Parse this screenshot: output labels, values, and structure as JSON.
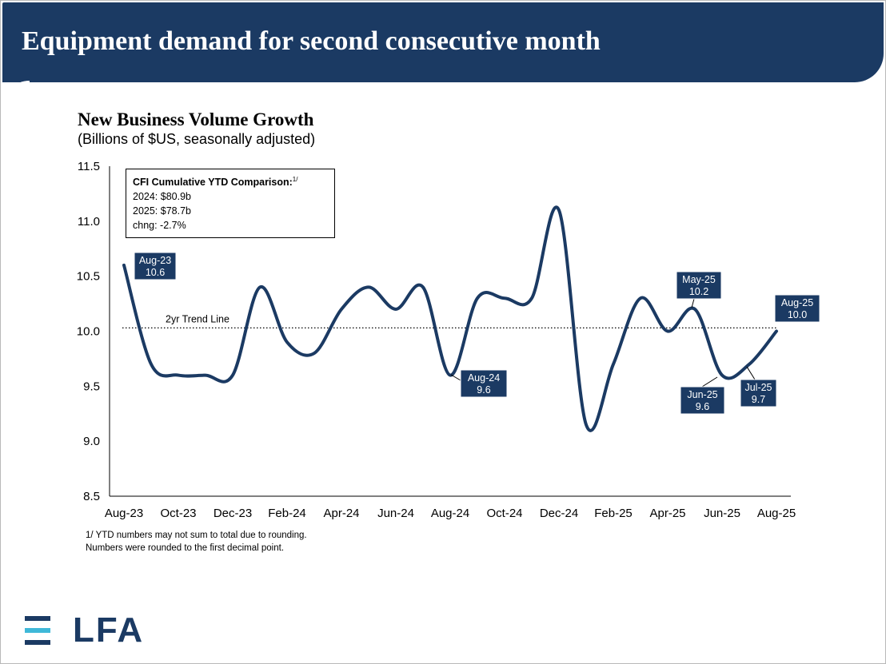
{
  "header": {
    "title": "Equipment demand for second consecutive month"
  },
  "chart_data": {
    "type": "line",
    "title": "New Business Volume Growth",
    "subtitle": "(Billions of $US, seasonally adjusted)",
    "y_range": [
      8.5,
      11.5
    ],
    "y_ticks": [
      "8.5",
      "9.0",
      "9.5",
      "10.0",
      "10.5",
      "11.0",
      "11.5"
    ],
    "x_ticks": [
      "Aug-23",
      "Oct-23",
      "Dec-23",
      "Feb-24",
      "Apr-24",
      "Jun-24",
      "Aug-24",
      "Oct-24",
      "Dec-24",
      "Feb-25",
      "Apr-25",
      "Jun-25",
      "Aug-25"
    ],
    "x": [
      "Aug-23",
      "Sep-23",
      "Oct-23",
      "Nov-23",
      "Dec-23",
      "Jan-24",
      "Feb-24",
      "Mar-24",
      "Apr-24",
      "May-24",
      "Jun-24",
      "Jul-24",
      "Aug-24",
      "Sep-24",
      "Oct-24",
      "Nov-24",
      "Dec-24",
      "Jan-25",
      "Feb-25",
      "Mar-25",
      "Apr-25",
      "May-25",
      "Jun-25",
      "Jul-25",
      "Aug-25"
    ],
    "series": [
      {
        "values": [
          10.6,
          9.7,
          9.6,
          9.6,
          9.6,
          10.4,
          9.9,
          9.8,
          10.2,
          10.4,
          10.2,
          10.4,
          9.6,
          10.3,
          10.3,
          10.3,
          11.1,
          9.15,
          9.7,
          10.3,
          10.0,
          10.2,
          9.6,
          9.7,
          10.0
        ],
        "color": "#1b3a63"
      }
    ],
    "trend_line": {
      "label": "2yr Trend Line",
      "value": 10.03
    },
    "callouts": [
      {
        "month": "Aug-23",
        "line1": "Aug-23",
        "line2": "10.6"
      },
      {
        "month": "Aug-24",
        "line1": "Aug-24",
        "line2": "9.6"
      },
      {
        "month": "May-25",
        "line1": "May-25",
        "line2": "10.2"
      },
      {
        "month": "Jun-25",
        "line1": "Jun-25",
        "line2": "9.6"
      },
      {
        "month": "Jul-25",
        "line1": "Jul-25",
        "line2": "9.7"
      },
      {
        "month": "Aug-25",
        "line1": "Aug-25",
        "line2": "10.0"
      }
    ],
    "grid": false,
    "legend": "none"
  },
  "ytd_box": {
    "title": "CFI Cumulative YTD Comparison:",
    "title_sup": "1/",
    "line1": "2024: $80.9b",
    "line2": "2025: $78.7b",
    "line3": "chng: -2.7%"
  },
  "footnote": {
    "line1": "1/ YTD numbers may not sum to total due to rounding.",
    "line2": "Numbers were rounded to the first decimal point."
  },
  "logo": {
    "text": "LFA",
    "color": "#1b3a63",
    "accent": "#3fb8d8"
  },
  "colors": {
    "navy": "#1b3a63",
    "accent": "#3fb8d8"
  }
}
